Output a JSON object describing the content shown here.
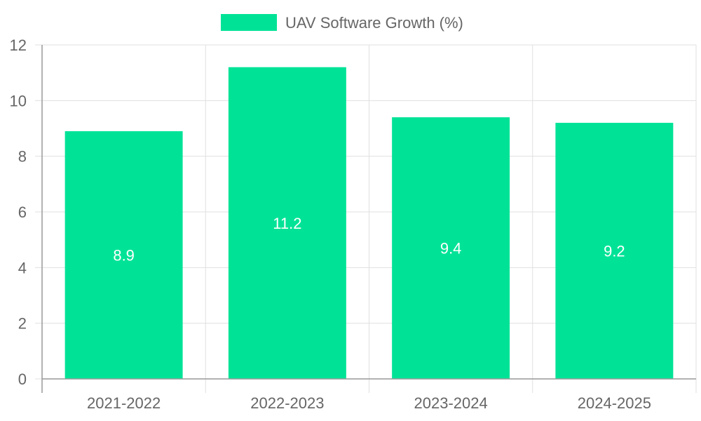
{
  "chart_data": {
    "type": "bar",
    "categories": [
      "2021-2022",
      "2022-2023",
      "2023-2024",
      "2024-2025"
    ],
    "series": [
      {
        "name": "UAV Software Growth (%)",
        "values": [
          8.9,
          11.2,
          9.4,
          9.2
        ]
      }
    ],
    "ylim": [
      0,
      12
    ],
    "yticks": [
      0,
      2,
      4,
      6,
      8,
      10,
      12
    ],
    "grid": true,
    "legend": "top-center",
    "data_labels": [
      "8.9",
      "11.2",
      "9.4",
      "9.2"
    ],
    "colors": {
      "bar": "#00E396",
      "grid": "#e0e0e0",
      "axis": "#999999",
      "text": "#666666"
    }
  }
}
